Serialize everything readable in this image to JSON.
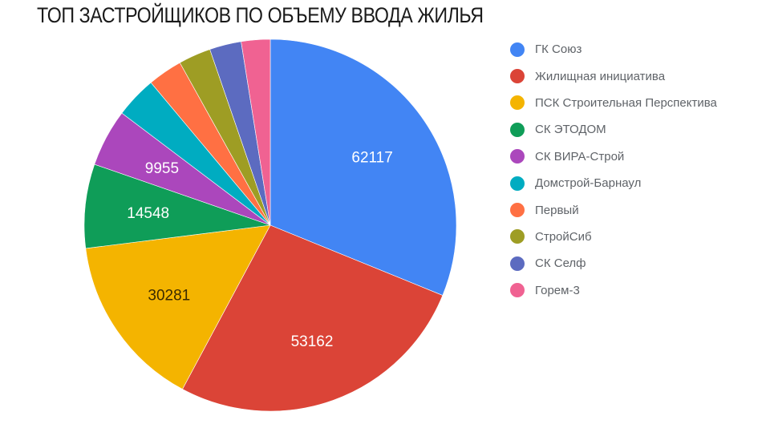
{
  "title": "ТОП ЗАСТРОЙЩИКОВ ПО ОБЪЕМУ ВВОДА ЖИЛЬЯ",
  "chart_data": {
    "type": "pie",
    "title": "ТОП ЗАСТРОЙЩИКОВ ПО ОБЪЕМУ ВВОДА ЖИЛЬЯ",
    "legend_position": "right",
    "categories": [
      "ГК Союз",
      "Жилищная инициатива",
      "ПСК Строительная Перспектива",
      "СК ЭТОДОМ",
      "СК ВИРА-Строй",
      "Домстрой-Барнаул",
      "Первый",
      "СтройСиб",
      "СК Селф",
      "Горем-3"
    ],
    "values": [
      62117,
      53162,
      30281,
      14548,
      9955,
      7200,
      6000,
      5600,
      5500,
      5000
    ],
    "labeled_values": {
      "ГК Союз": 62117,
      "Жилищная инициатива": 53162,
      "ПСК Строительная Перспектива": 30281,
      "СК ЭТОДОМ": 14548,
      "СК ВИРА-Строй": 9955
    },
    "colors": [
      "#4285f4",
      "#db4437",
      "#f4b400",
      "#0f9d58",
      "#ab47bc",
      "#00acc1",
      "#ff7043",
      "#9e9d24",
      "#5c6bc0",
      "#f06292"
    ],
    "label_colors": [
      "#ffffff",
      "#ffffff",
      "#3a2a00",
      "#ffffff",
      "#ffffff",
      "",
      "",
      "",
      "",
      ""
    ]
  },
  "legend": {
    "items": [
      {
        "label": "ГК Союз",
        "color": "#4285f4"
      },
      {
        "label": "Жилищная инициатива",
        "color": "#db4437"
      },
      {
        "label": "ПСК Строительная Перспектива",
        "color": "#f4b400"
      },
      {
        "label": "СК ЭТОДОМ",
        "color": "#0f9d58"
      },
      {
        "label": "СК ВИРА-Строй",
        "color": "#ab47bc"
      },
      {
        "label": "Домстрой-Барнаул",
        "color": "#00acc1"
      },
      {
        "label": "Первый",
        "color": "#ff7043"
      },
      {
        "label": "СтройСиб",
        "color": "#9e9d24"
      },
      {
        "label": "СК Селф",
        "color": "#5c6bc0"
      },
      {
        "label": "Горем-3",
        "color": "#f06292"
      }
    ]
  }
}
